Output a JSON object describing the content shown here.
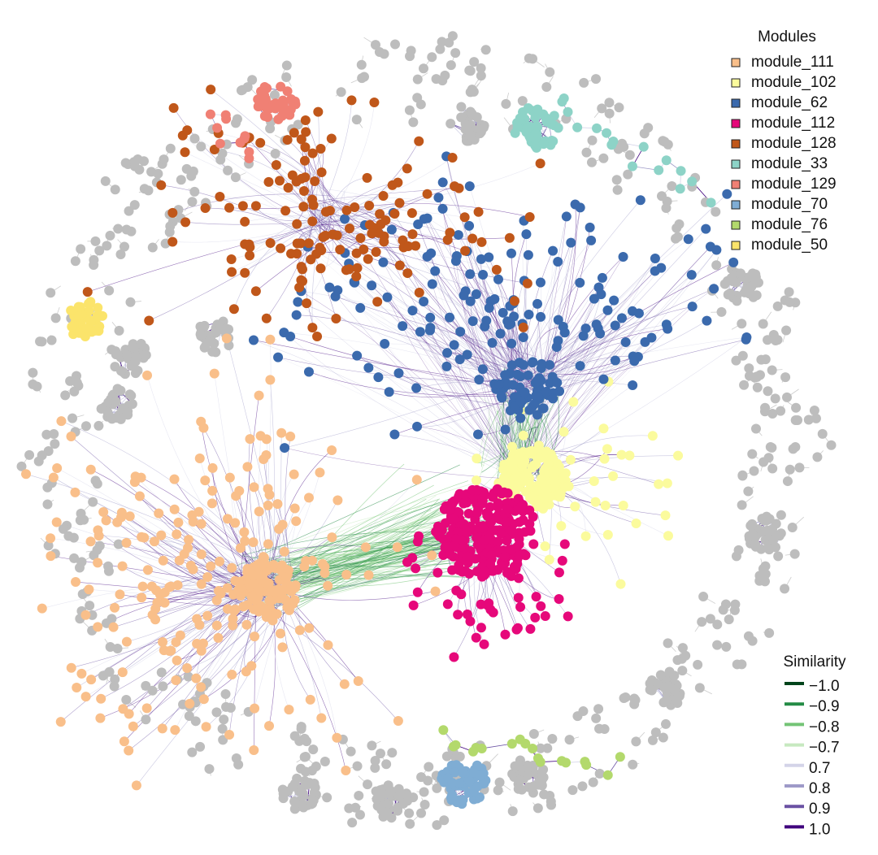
{
  "legend_modules": {
    "title": "Modules",
    "items": [
      {
        "label": "module_111",
        "color": "#f9bf8a"
      },
      {
        "label": "module_102",
        "color": "#fbfb9d"
      },
      {
        "label": "module_62",
        "color": "#3b6aad"
      },
      {
        "label": "module_112",
        "color": "#e6087a"
      },
      {
        "label": "module_128",
        "color": "#c0571a"
      },
      {
        "label": "module_33",
        "color": "#8dd3c7"
      },
      {
        "label": "module_129",
        "color": "#f08074"
      },
      {
        "label": "module_70",
        "color": "#7fadd4"
      },
      {
        "label": "module_76",
        "color": "#b3d96c"
      },
      {
        "label": "module_50",
        "color": "#fbe46b"
      }
    ]
  },
  "legend_similarity": {
    "title": "Similarity",
    "items": [
      {
        "label": "−1.0",
        "color": "#00441b"
      },
      {
        "label": "−0.9",
        "color": "#238b45"
      },
      {
        "label": "−0.8",
        "color": "#74c476"
      },
      {
        "label": "−0.7",
        "color": "#c7e9c0"
      },
      {
        "label": "0.7",
        "color": "#d4d4e8"
      },
      {
        "label": "0.8",
        "color": "#9e9ac8"
      },
      {
        "label": "0.9",
        "color": "#6a51a3"
      },
      {
        "label": "1.0",
        "color": "#3f007d"
      }
    ]
  }
}
